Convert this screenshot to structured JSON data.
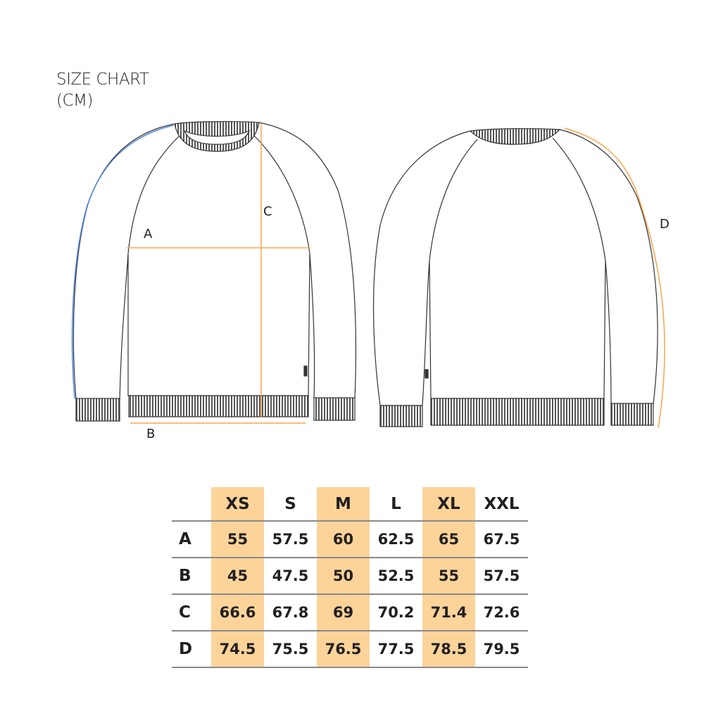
{
  "title": [
    "SIZE CHART",
    "(CM)"
  ],
  "diagram_labels": {
    "A": "A",
    "B": "B",
    "C": "C",
    "D": "D"
  },
  "colors": {
    "highlight": "#fcd49a",
    "measure": "#f7a64a",
    "sleeve_front": "#4a86e8"
  },
  "table": {
    "sizes": [
      "XS",
      "S",
      "M",
      "L",
      "XL",
      "XXL"
    ],
    "highlighted": [
      "XS",
      "M",
      "XL"
    ],
    "rows": [
      {
        "label": "A",
        "values": [
          "55",
          "57.5",
          "60",
          "62.5",
          "65",
          "67.5"
        ]
      },
      {
        "label": "B",
        "values": [
          "45",
          "47.5",
          "50",
          "52.5",
          "55",
          "57.5"
        ]
      },
      {
        "label": "C",
        "values": [
          "66.6",
          "67.8",
          "69",
          "70.2",
          "71.4",
          "72.6"
        ]
      },
      {
        "label": "D",
        "values": [
          "74.5",
          "75.5",
          "76.5",
          "77.5",
          "78.5",
          "79.5"
        ]
      }
    ]
  }
}
